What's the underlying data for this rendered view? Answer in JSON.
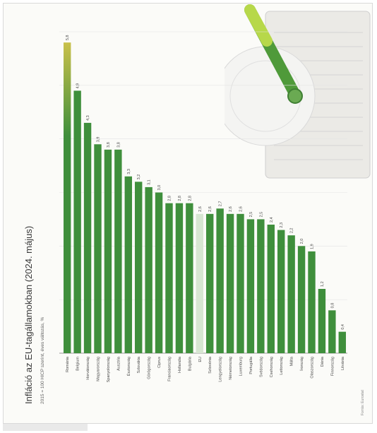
{
  "chart_data": {
    "type": "bar",
    "orientation": "rotated-90-ccw",
    "title": "Infláció az EU-tagállamokban (2024. május)",
    "subtitle": "2015 = 100 HICP szerint, éves változás, %",
    "source": "Forrás: Eurostat",
    "categories": [
      "Románia",
      "Belgium",
      "Horvátország",
      "Magyarország",
      "Spanyolország",
      "Ausztria",
      "Észtország",
      "Szlovákia",
      "Görögország",
      "Ciprus",
      "Franciaország",
      "Hollandia",
      "Bulgária",
      "EU",
      "Szlovénia",
      "Lengyelország",
      "Németország",
      "Luxemburg",
      "Portugália",
      "Svédország",
      "Csehország",
      "Lettország",
      "Málta",
      "Írország",
      "Olaszország",
      "Dánia",
      "Finnország",
      "Litvánia"
    ],
    "values": [
      5.8,
      4.9,
      4.3,
      3.9,
      3.8,
      3.8,
      3.3,
      3.2,
      3.1,
      3.0,
      2.8,
      2.8,
      2.8,
      2.6,
      2.6,
      2.7,
      2.6,
      2.6,
      2.5,
      2.5,
      2.4,
      2.3,
      2.2,
      2.0,
      1.9,
      1.2,
      0.8,
      0.4
    ],
    "value_labels": [
      "5,8",
      "4,9",
      "4,3",
      "3,9",
      "3,8",
      "3,8",
      "3,3",
      "3,2",
      "3,1",
      "3,0",
      "2,8",
      "2,8",
      "2,8",
      "2,6",
      "2,6",
      "2,7",
      "2,6",
      "2,6",
      "2,5",
      "2,5",
      "2,4",
      "2,3",
      "2,2",
      "2,0",
      "1,9",
      "1,2",
      "0,8",
      "0,4"
    ],
    "highlight": [
      "EU"
    ],
    "ylim": [
      0,
      6
    ],
    "colors": {
      "bar": "#3f8f3c",
      "bar_light": "#a9cfa0",
      "highlight": "#d7e6d2",
      "axis": "#9a9a9a",
      "text": "#4a4a4a",
      "gauge": "#7bbf4a"
    }
  }
}
